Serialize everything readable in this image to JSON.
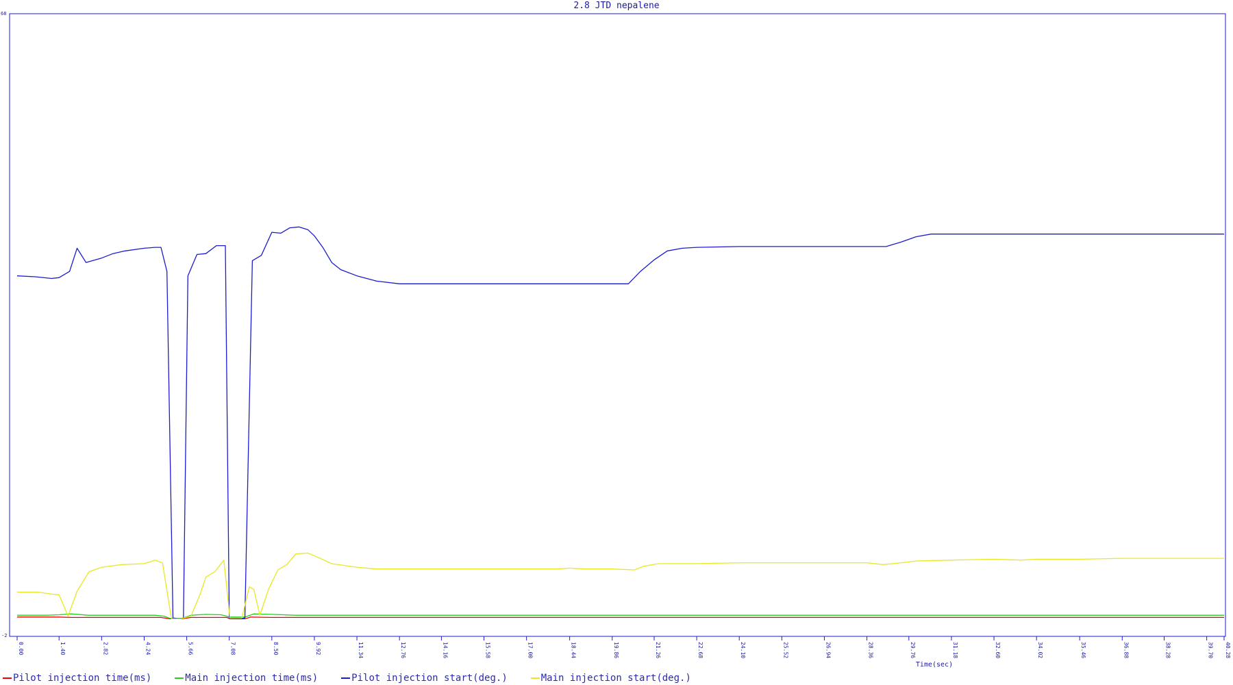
{
  "chart_data": {
    "type": "line",
    "title": "2.8 JTD nepalene",
    "xlabel": "Time(sec)",
    "ylabel": "",
    "ylim": [
      -2,
      68
    ],
    "y_ticks": [
      "68",
      "-2"
    ],
    "x_ticks": [
      "0.00",
      "1.40",
      "2.82",
      "4.24",
      "5.66",
      "7.08",
      "8.50",
      "9.92",
      "11.34",
      "12.76",
      "14.16",
      "15.58",
      "17.00",
      "18.44",
      "19.86",
      "21.26",
      "22.68",
      "24.10",
      "25.52",
      "26.94",
      "28.36",
      "29.76",
      "31.18",
      "32.60",
      "34.02",
      "35.46",
      "36.88",
      "38.28",
      "39.70",
      "40.28"
    ],
    "grid": false,
    "legend_position": "bottom-left",
    "series": [
      {
        "name": "Pilot injection time(ms)",
        "color": "#ee0000",
        "points": [
          [
            0,
            0.1
          ],
          [
            1.4,
            0.1
          ],
          [
            1.8,
            0.05
          ],
          [
            2.82,
            0.05
          ],
          [
            4.8,
            0.05
          ],
          [
            5.1,
            -0.1
          ],
          [
            5.5,
            -0.1
          ],
          [
            5.8,
            0.05
          ],
          [
            7.0,
            0.05
          ],
          [
            7.1,
            -0.1
          ],
          [
            7.6,
            -0.1
          ],
          [
            7.8,
            0.1
          ],
          [
            8.5,
            0.05
          ],
          [
            40.28,
            0.05
          ]
        ]
      },
      {
        "name": "Main injection time(ms)",
        "color": "#22cc22",
        "points": [
          [
            0,
            0.3
          ],
          [
            1.0,
            0.3
          ],
          [
            1.4,
            0.35
          ],
          [
            1.8,
            0.45
          ],
          [
            2.4,
            0.3
          ],
          [
            4.6,
            0.3
          ],
          [
            4.9,
            0.2
          ],
          [
            5.1,
            -0.05
          ],
          [
            5.5,
            -0.05
          ],
          [
            5.8,
            0.3
          ],
          [
            6.3,
            0.4
          ],
          [
            6.8,
            0.35
          ],
          [
            7.1,
            0.1
          ],
          [
            7.6,
            0.1
          ],
          [
            7.9,
            0.45
          ],
          [
            8.5,
            0.4
          ],
          [
            9.3,
            0.3
          ],
          [
            40.28,
            0.3
          ]
        ]
      },
      {
        "name": "Pilot injection start(deg.)",
        "color": "#1a1ad0",
        "points": [
          [
            0,
            38.5
          ],
          [
            0.6,
            38.4
          ],
          [
            1.15,
            38.2
          ],
          [
            1.4,
            38.3
          ],
          [
            1.75,
            39
          ],
          [
            2.0,
            41.6
          ],
          [
            2.3,
            40.0
          ],
          [
            2.82,
            40.5
          ],
          [
            3.2,
            41.0
          ],
          [
            3.6,
            41.3
          ],
          [
            4.24,
            41.6
          ],
          [
            4.6,
            41.7
          ],
          [
            4.8,
            41.7
          ],
          [
            5.0,
            39.0
          ],
          [
            5.2,
            0
          ],
          [
            5.4,
            -0.1
          ],
          [
            5.55,
            0
          ],
          [
            5.7,
            38.5
          ],
          [
            6.0,
            40.9
          ],
          [
            6.3,
            41.0
          ],
          [
            6.65,
            41.9
          ],
          [
            6.95,
            41.9
          ],
          [
            7.08,
            0
          ],
          [
            7.45,
            -0.1
          ],
          [
            7.6,
            0
          ],
          [
            7.85,
            40.2
          ],
          [
            8.15,
            40.8
          ],
          [
            8.5,
            43.4
          ],
          [
            8.8,
            43.3
          ],
          [
            9.1,
            43.9
          ],
          [
            9.4,
            44.0
          ],
          [
            9.7,
            43.7
          ],
          [
            9.92,
            43.0
          ],
          [
            10.2,
            41.7
          ],
          [
            10.5,
            40.0
          ],
          [
            10.8,
            39.2
          ],
          [
            11.34,
            38.5
          ],
          [
            12.0,
            37.9
          ],
          [
            12.76,
            37.6
          ],
          [
            14.16,
            37.6
          ],
          [
            15.58,
            37.6
          ],
          [
            17.0,
            37.6
          ],
          [
            18.44,
            37.6
          ],
          [
            19.86,
            37.6
          ],
          [
            20.4,
            37.6
          ],
          [
            20.8,
            39.0
          ],
          [
            21.26,
            40.3
          ],
          [
            21.7,
            41.3
          ],
          [
            22.2,
            41.6
          ],
          [
            22.68,
            41.7
          ],
          [
            24.1,
            41.8
          ],
          [
            25.52,
            41.8
          ],
          [
            26.94,
            41.8
          ],
          [
            28.36,
            41.8
          ],
          [
            29.0,
            41.8
          ],
          [
            29.5,
            42.3
          ],
          [
            30.0,
            42.9
          ],
          [
            30.5,
            43.2
          ],
          [
            31.18,
            43.2
          ],
          [
            32.6,
            43.2
          ],
          [
            34.02,
            43.2
          ],
          [
            35.46,
            43.2
          ],
          [
            36.88,
            43.2
          ],
          [
            38.28,
            43.2
          ],
          [
            39.7,
            43.2
          ],
          [
            40.28,
            43.2
          ]
        ]
      },
      {
        "name": "Main injection start(deg.)",
        "color": "#e8e820",
        "points": [
          [
            0,
            2.9
          ],
          [
            0.7,
            2.9
          ],
          [
            1.1,
            2.7
          ],
          [
            1.4,
            2.6
          ],
          [
            1.7,
            0.2
          ],
          [
            2.0,
            3.0
          ],
          [
            2.4,
            5.2
          ],
          [
            2.82,
            5.7
          ],
          [
            3.5,
            6.0
          ],
          [
            4.24,
            6.1
          ],
          [
            4.6,
            6.5
          ],
          [
            4.85,
            6.2
          ],
          [
            5.15,
            -0.1
          ],
          [
            5.45,
            -0.1
          ],
          [
            5.8,
            0.2
          ],
          [
            6.1,
            2.6
          ],
          [
            6.3,
            4.6
          ],
          [
            6.6,
            5.2
          ],
          [
            6.9,
            6.5
          ],
          [
            7.1,
            0
          ],
          [
            7.5,
            0
          ],
          [
            7.75,
            3.5
          ],
          [
            7.9,
            3.2
          ],
          [
            8.1,
            0.3
          ],
          [
            8.4,
            3.3
          ],
          [
            8.7,
            5.4
          ],
          [
            9.0,
            6.0
          ],
          [
            9.3,
            7.2
          ],
          [
            9.7,
            7.3
          ],
          [
            9.92,
            7.0
          ],
          [
            10.5,
            6.1
          ],
          [
            11.34,
            5.7
          ],
          [
            12.0,
            5.5
          ],
          [
            12.76,
            5.5
          ],
          [
            14.16,
            5.5
          ],
          [
            15.58,
            5.5
          ],
          [
            17.0,
            5.5
          ],
          [
            18.0,
            5.5
          ],
          [
            18.44,
            5.6
          ],
          [
            19.0,
            5.5
          ],
          [
            19.86,
            5.5
          ],
          [
            20.6,
            5.4
          ],
          [
            20.9,
            5.8
          ],
          [
            21.4,
            6.1
          ],
          [
            22.68,
            6.1
          ],
          [
            24.1,
            6.2
          ],
          [
            25.52,
            6.2
          ],
          [
            26.94,
            6.2
          ],
          [
            28.36,
            6.2
          ],
          [
            28.9,
            6.0
          ],
          [
            29.5,
            6.2
          ],
          [
            30.0,
            6.4
          ],
          [
            31.18,
            6.5
          ],
          [
            32.6,
            6.6
          ],
          [
            33.5,
            6.5
          ],
          [
            34.02,
            6.6
          ],
          [
            35.46,
            6.6
          ],
          [
            36.88,
            6.7
          ],
          [
            38.28,
            6.7
          ],
          [
            39.7,
            6.7
          ],
          [
            40.28,
            6.7
          ]
        ]
      }
    ]
  }
}
